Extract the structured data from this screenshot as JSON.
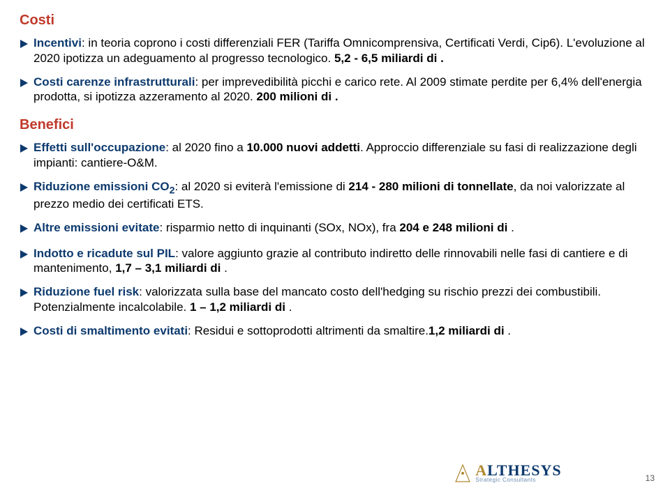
{
  "colors": {
    "heading": "#c0392b",
    "accent": "#0d3a6e",
    "text": "#000000"
  },
  "fontsize": {
    "heading": 20,
    "body": 17,
    "line_height": 1.28
  },
  "costi": {
    "title": "Costi",
    "items": [
      {
        "label": "Incentivi",
        "text": ": in teoria coprono i costi differenziali FER (Tariffa Omnicomprensiva, Certificati Verdi, Cip6). L'evoluzione al 2020 ipotizza un adeguamento al progresso tecnologico.     ",
        "bold_tail": "5,2 - 6,5 miliardi di ."
      },
      {
        "label": "Costi carenze infrastrutturali",
        "text": ": per imprevedibilità picchi e carico rete. Al 2009 stimate perdite per 6,4% dell'energia prodotta, si ipotizza azzeramento al 2020. ",
        "bold_tail": "200 milioni di ."
      }
    ]
  },
  "benefici": {
    "title": "Benefici",
    "items": [
      {
        "label": "Effetti sull'occupazione",
        "text": ": al 2020 fino a ",
        "bold_mid": "10.000 nuovi addetti",
        "text2": ". Approccio differenziale su fasi di realizzazione degli impianti: cantiere-O&M."
      },
      {
        "label_html": "Riduzione emissioni CO",
        "label_sub": "2",
        "text": ": al 2020 si eviterà l'emissione di ",
        "bold_mid": "214 - 280 milioni di tonnellate",
        "text2": ", da noi valorizzate al prezzo medio dei certificati ETS."
      },
      {
        "label": "Altre emissioni evitate",
        "text": ": risparmio netto di inquinanti (SOx, NOx), fra ",
        "bold_mid": "204 e 248 milioni di ",
        "text2": "."
      },
      {
        "label": "Indotto e ricadute sul PIL",
        "text": ": valore aggiunto grazie al contributo indiretto delle rinnovabili nelle fasi di cantiere e di mantenimento, ",
        "bold_mid": "1,7 – 3,1 miliardi di ",
        "text2": "."
      },
      {
        "label": "Riduzione fuel risk",
        "text": ": valorizzata sulla base del mancato costo dell'hedging su rischio prezzi dei combustibili. Potenzialmente incalcolabile. ",
        "bold_mid": "1 – 1,2 miliardi di ",
        "text2": "."
      },
      {
        "label": "Costi di smaltimento evitati",
        "text": ": Residui e sottoprodotti altrimenti da smaltire.",
        "bold_mid": "1,2 miliardi di ",
        "text2": "."
      }
    ]
  },
  "logo": {
    "name": "ALTHESYS",
    "subtitle": "Strategic Consultants"
  },
  "page_number": "13"
}
